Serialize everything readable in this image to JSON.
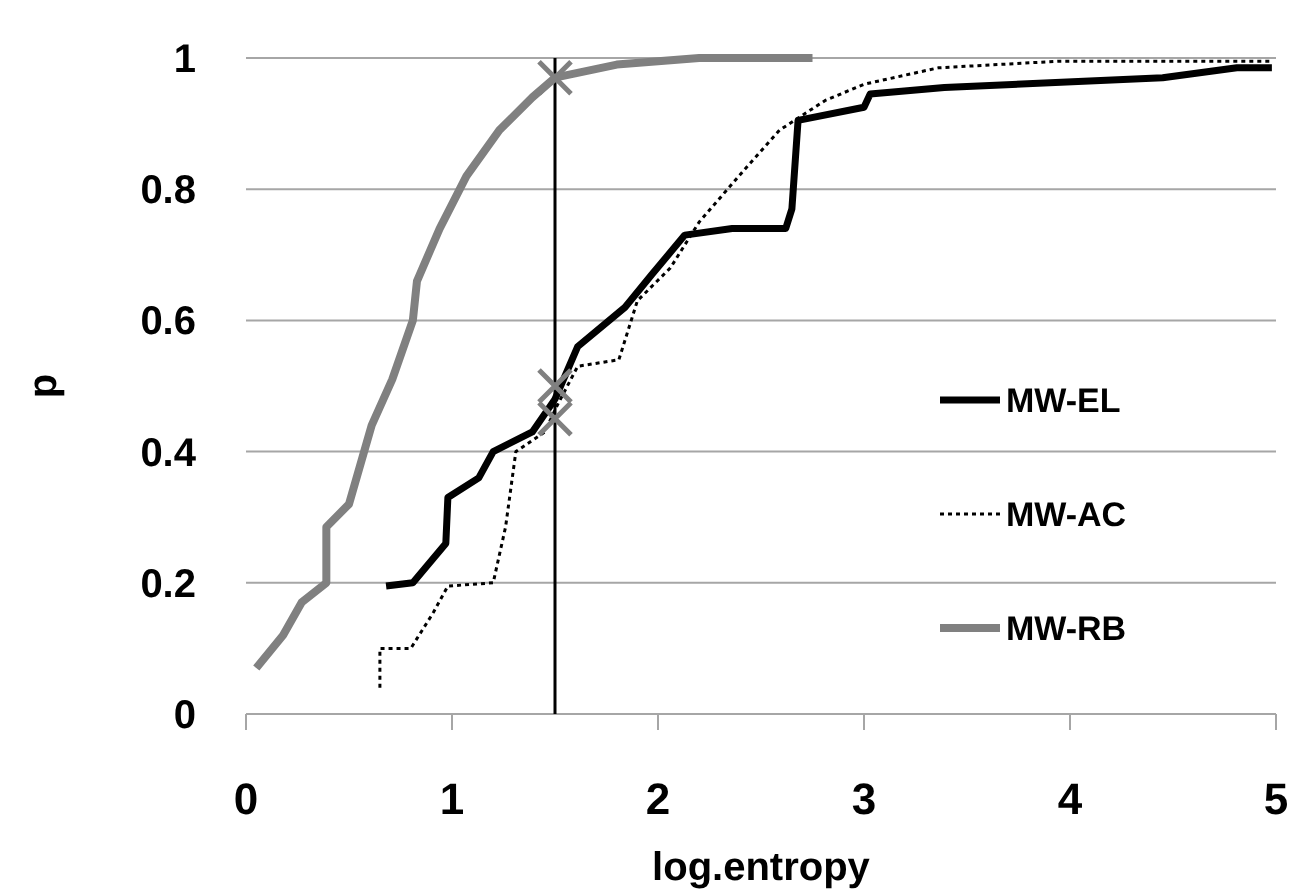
{
  "chart_data": {
    "type": "line",
    "xlabel": "log.entropy",
    "ylabel": "p",
    "xlim": [
      0,
      5
    ],
    "ylim": [
      0,
      1
    ],
    "xticks": [
      0,
      1,
      2,
      3,
      4,
      5
    ],
    "yticks": [
      0,
      0.2,
      0.4,
      0.6,
      0.8,
      1
    ],
    "grid": "y",
    "legend": "right",
    "marker": "none",
    "ref_lines": [
      {
        "axis": "x",
        "value": 1.5,
        "color": "#000000",
        "line_style": "solid"
      }
    ],
    "series": [
      {
        "name": "MW-EL",
        "color": "#000000",
        "line_style": "solid",
        "x": [
          0.68,
          0.81,
          0.97,
          0.98,
          1.13,
          1.2,
          1.39,
          1.5,
          1.61,
          1.84,
          1.97,
          2.13,
          2.36,
          2.62,
          2.65,
          2.68,
          3.0,
          3.03,
          3.39,
          4.45,
          4.81,
          4.98
        ],
        "values": [
          0.195,
          0.2,
          0.26,
          0.33,
          0.36,
          0.4,
          0.43,
          0.48,
          0.56,
          0.62,
          0.67,
          0.73,
          0.74,
          0.74,
          0.77,
          0.905,
          0.925,
          0.945,
          0.955,
          0.97,
          0.985,
          0.985
        ]
      },
      {
        "name": "MW-AC",
        "color": "#000000",
        "line_style": "dotted",
        "x": [
          0.65,
          0.65,
          0.8,
          0.91,
          0.98,
          1.2,
          1.26,
          1.31,
          1.45,
          1.51,
          1.61,
          1.81,
          1.9,
          2.06,
          2.2,
          2.42,
          2.59,
          2.81,
          3.0,
          3.36,
          3.94,
          4.98
        ],
        "values": [
          0.04,
          0.1,
          0.1,
          0.155,
          0.195,
          0.2,
          0.285,
          0.4,
          0.43,
          0.47,
          0.53,
          0.54,
          0.63,
          0.68,
          0.75,
          0.83,
          0.89,
          0.935,
          0.96,
          0.985,
          0.995,
          0.995
        ]
      },
      {
        "name": "MW-RB",
        "color": "#808080",
        "line_style": "solid",
        "x": [
          0.05,
          0.18,
          0.27,
          0.39,
          0.39,
          0.5,
          0.61,
          0.71,
          0.81,
          0.83,
          0.94,
          1.07,
          1.23,
          1.39,
          1.5,
          1.8,
          2.2,
          2.75
        ],
        "values": [
          0.07,
          0.12,
          0.17,
          0.2,
          0.285,
          0.32,
          0.44,
          0.51,
          0.6,
          0.66,
          0.74,
          0.82,
          0.89,
          0.94,
          0.97,
          0.99,
          1,
          1
        ]
      },
      {
        "type": "scatter",
        "marker": "cross",
        "color": "#808080",
        "x": [
          1.5,
          1.5,
          1.5
        ],
        "values": [
          0.97,
          0.5,
          0.45
        ]
      }
    ]
  }
}
